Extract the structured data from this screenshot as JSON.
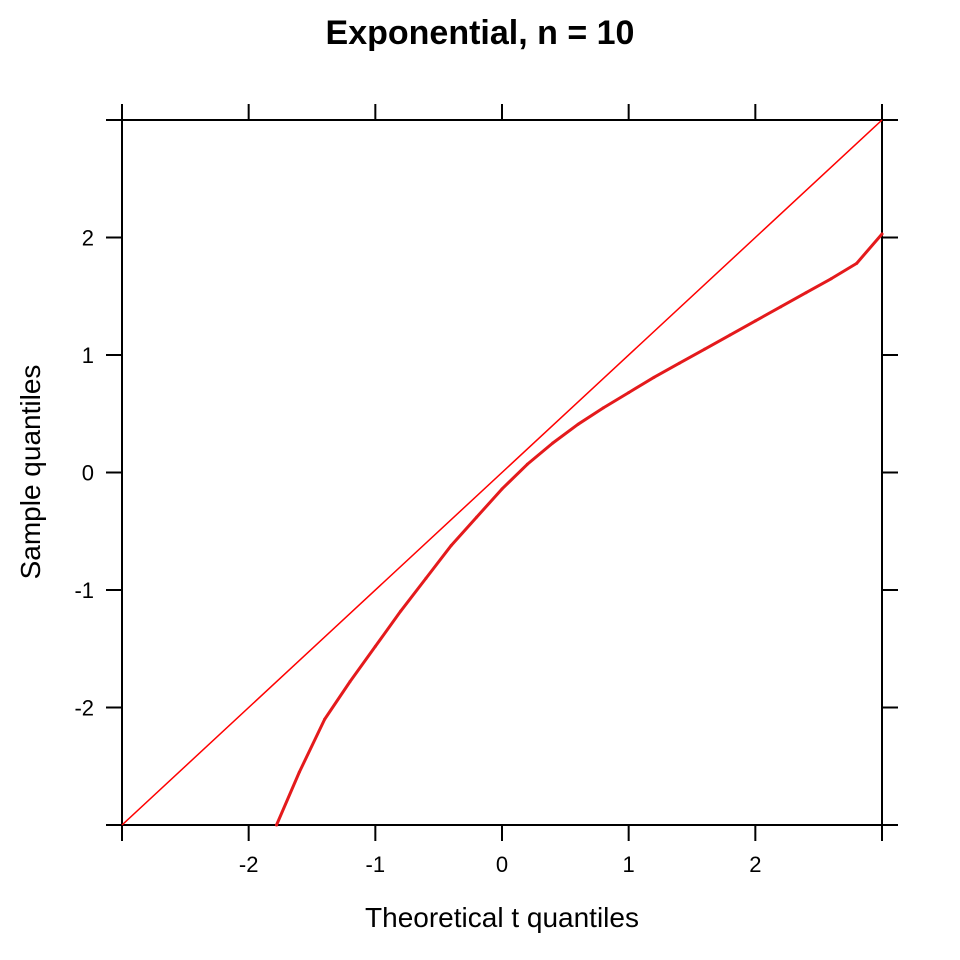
{
  "chart_data": {
    "type": "line",
    "title": "Exponential, n = 10",
    "xlabel": "Theoretical t quantiles",
    "ylabel": "Sample quantiles",
    "xlim": [
      -3,
      3
    ],
    "ylim": [
      -3,
      3
    ],
    "x_ticks": [
      -2,
      -1,
      0,
      1,
      2
    ],
    "x_tick_labels": [
      "-2",
      "-1",
      "0",
      "1",
      "2"
    ],
    "y_ticks": [
      -2,
      -1,
      0,
      1,
      2
    ],
    "y_tick_labels": [
      "-2",
      "-1",
      "0",
      "1",
      "2"
    ],
    "grid": false,
    "colors": {
      "series": "#e41a1c",
      "reference": "#ff0000",
      "axes": "#000000"
    },
    "series": [
      {
        "x": [
          -1.78,
          -1.6,
          -1.4,
          -1.2,
          -1.0,
          -0.8,
          -0.6,
          -0.4,
          -0.2,
          0.0,
          0.2,
          0.4,
          0.6,
          0.8,
          1.0,
          1.2,
          1.4,
          1.6,
          1.8,
          2.0,
          2.2,
          2.4,
          2.6,
          2.8,
          3.0
        ],
        "y": [
          -3.0,
          -2.55,
          -2.1,
          -1.78,
          -1.48,
          -1.18,
          -0.9,
          -0.62,
          -0.38,
          -0.14,
          0.07,
          0.25,
          0.41,
          0.55,
          0.68,
          0.81,
          0.93,
          1.05,
          1.17,
          1.29,
          1.41,
          1.53,
          1.65,
          1.78,
          2.03
        ]
      }
    ],
    "reference_line": {
      "slope": 1,
      "intercept": 0
    }
  }
}
